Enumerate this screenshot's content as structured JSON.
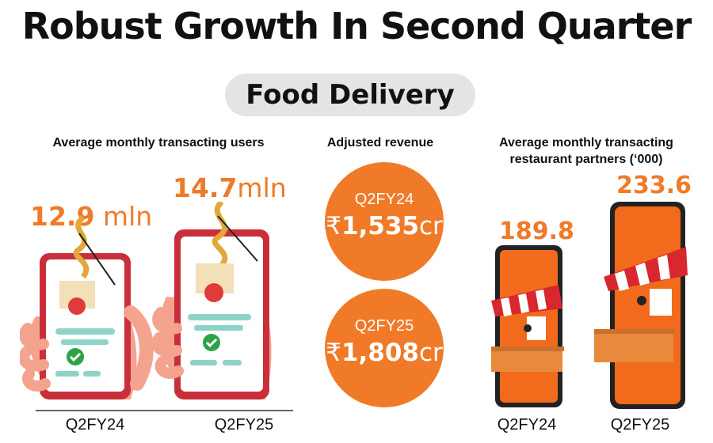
{
  "title": "Robust Growth In Second Quarter",
  "category": "Food Delivery",
  "sections": {
    "users": {
      "label": "Average monthly transacting users",
      "items": [
        {
          "value": "12.9",
          "unit": "mln",
          "period": "Q2FY24"
        },
        {
          "value": "14.7",
          "unit": "mln",
          "period": "Q2FY25"
        }
      ]
    },
    "revenue": {
      "label": "Adjusted revenue",
      "items": [
        {
          "period": "Q2FY24",
          "currency": "₹",
          "value": "1,535",
          "unit": "cr"
        },
        {
          "period": "Q2FY25",
          "currency": "₹",
          "value": "1,808",
          "unit": "cr"
        }
      ]
    },
    "partners": {
      "label_line1": "Average monthly transacting",
      "label_line2": "restaurant partners (‘000)",
      "items": [
        {
          "value": "189.8",
          "period": "Q2FY24"
        },
        {
          "value": "233.6",
          "period": "Q2FY25"
        }
      ]
    }
  },
  "colors": {
    "accent": "#f07a28",
    "text": "#111111",
    "pill": "#e4e4e4"
  },
  "chart_data": [
    {
      "type": "bar",
      "categories": [
        "Q2FY24",
        "Q2FY25"
      ],
      "values": [
        12.9,
        14.7
      ],
      "title": "Average monthly transacting users",
      "unit": "mln"
    },
    {
      "type": "table",
      "categories": [
        "Q2FY24",
        "Q2FY25"
      ],
      "values": [
        1535,
        1808
      ],
      "title": "Adjusted revenue",
      "unit": "₹ cr"
    },
    {
      "type": "bar",
      "categories": [
        "Q2FY24",
        "Q2FY25"
      ],
      "values": [
        189.8,
        233.6
      ],
      "title": "Average monthly transacting restaurant partners (‘000)"
    }
  ]
}
